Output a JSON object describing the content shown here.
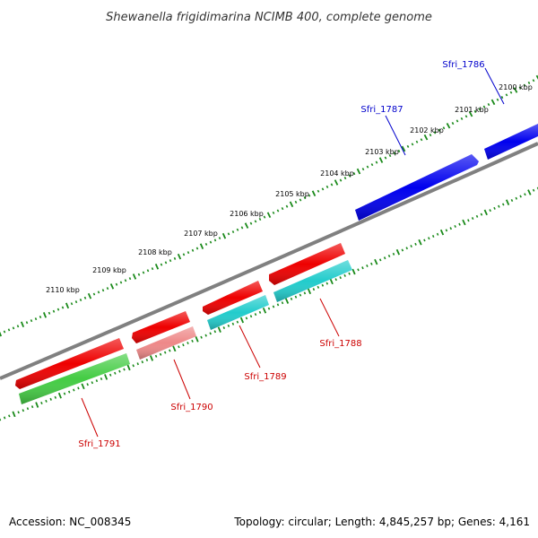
{
  "title": "Shewanella frigidimarina NCIMB 400, complete genome",
  "footer": {
    "accession": "Accession: NC_008345",
    "topology": "Topology: circular; Length: 4,845,257 bp; Genes: 4,161"
  },
  "colors": {
    "backbone": "#808080",
    "ticks": "#1a8a1a",
    "label_red": "#cc0000",
    "label_blue": "#0000cc"
  },
  "kbp_labels": [
    "2100 kbp",
    "2101 kbp",
    "2102 kbp",
    "2103 kbp",
    "2104 kbp",
    "2105 kbp",
    "2106 kbp",
    "2107 kbp",
    "2108 kbp",
    "2109 kbp",
    "2110 kbp"
  ],
  "genes": [
    {
      "label": "Sfri_1786",
      "color": "#0000ee",
      "strand": "+"
    },
    {
      "label": "Sfri_1787",
      "color": "#0000ee",
      "strand": "+"
    },
    {
      "label": "Sfri_1788",
      "color": "#ee0000",
      "strand": "-"
    },
    {
      "label": "Sfri_1789",
      "color": "#ee0000",
      "strand": "-"
    },
    {
      "label": "Sfri_1790",
      "color": "#ee0000",
      "strand": "-"
    },
    {
      "label": "Sfri_1791",
      "color": "#ee0000",
      "strand": "-"
    }
  ],
  "feature_bars": [
    {
      "color": "#22cccc"
    },
    {
      "color": "#22cccc"
    },
    {
      "color": "#ee8888"
    },
    {
      "color": "#44cc44"
    }
  ]
}
